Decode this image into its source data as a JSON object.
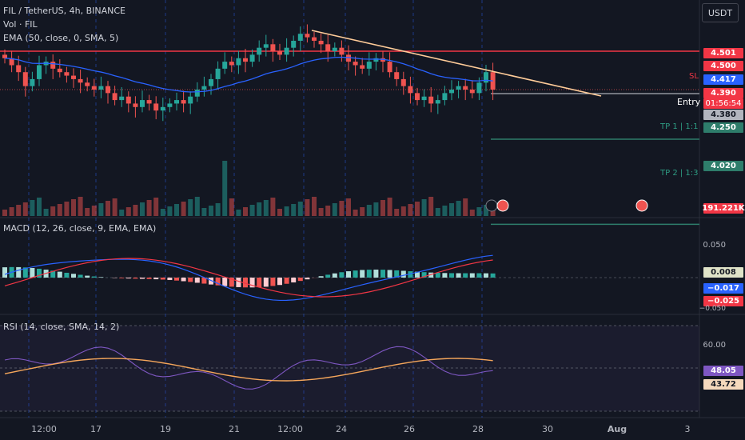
{
  "header": {
    "title": "FIL / TetherUS, 4h, BINANCE",
    "vol": "Vol · FIL",
    "ema": "EMA (50, close, 0, SMA, 5)",
    "macd": "MACD (12, 26, close, 9, EMA, EMA)",
    "rsi": "RSI (14, close, SMA, 14, 2)"
  },
  "currency": "USDT",
  "price_tags": {
    "p4501": "4.501",
    "p4500": "4.500",
    "p4417": "4.417",
    "p4390": "4.390",
    "countdown": "01:56:54",
    "p4380": "4.380",
    "p4250": "4.250",
    "p4020": "4.020",
    "vol": "191.221K",
    "macd_hist": "0.008",
    "macd_line": "−0.017",
    "macd_signal": "−0.025",
    "rsi": "48.05",
    "rsi_ma": "43.72"
  },
  "axis_labels": {
    "macd_tick": "0.050",
    "macd_tick_low": "−0.050",
    "rsi_tick": "60.00"
  },
  "annotations": {
    "sl": "SL",
    "entry": "Entry",
    "tp1": "TP 1 | 1:1",
    "tp2": "TP 2 | 1:3"
  },
  "x_ticks": [
    "12:00",
    "17",
    "19",
    "21",
    "12:00",
    "24",
    "26",
    "28",
    "30",
    "Aug",
    "3"
  ],
  "colors": {
    "bg": "#131722",
    "up": "#26a69a",
    "down": "#ef5350",
    "ema": "#2962ff",
    "trend": "#ffcc99",
    "sl": "#f23645",
    "tp": "#2e7d6b",
    "macd": "#2962ff",
    "signal": "#f23645",
    "rsi": "#7e57c2",
    "rsi_ma": "#f5a65b"
  },
  "chart_data": {
    "type": "candlestick",
    "symbol": "FIL / TetherUS",
    "interval": "4h",
    "exchange": "BINANCE",
    "levels": {
      "stop_loss": 4.5,
      "entry": 4.39,
      "tp1": 4.25,
      "tp2": 4.02
    },
    "last_price": 4.39,
    "ema50_last": 4.417,
    "volume_last": "191.221K",
    "macd": {
      "histogram": 0.008,
      "macd": -0.017,
      "signal": -0.025
    },
    "rsi": {
      "rsi": 48.05,
      "rsi_ma": 43.72
    },
    "close_series": [
      4.48,
      4.46,
      4.44,
      4.4,
      4.42,
      4.46,
      4.47,
      4.45,
      4.44,
      4.43,
      4.42,
      4.41,
      4.4,
      4.39,
      4.4,
      4.38,
      4.36,
      4.37,
      4.35,
      4.34,
      4.36,
      4.35,
      4.33,
      4.34,
      4.35,
      4.36,
      4.35,
      4.37,
      4.39,
      4.4,
      4.42,
      4.45,
      4.47,
      4.46,
      4.48,
      4.47,
      4.49,
      4.51,
      4.52,
      4.5,
      4.49,
      4.51,
      4.53,
      4.55,
      4.54,
      4.53,
      4.52,
      4.5,
      4.51,
      4.49,
      4.47,
      4.46,
      4.45,
      4.47,
      4.48,
      4.47,
      4.44,
      4.42,
      4.4,
      4.38,
      4.36,
      4.37,
      4.35,
      4.36,
      4.38,
      4.39,
      4.4,
      4.39,
      4.38,
      4.41,
      4.44,
      4.39
    ]
  }
}
